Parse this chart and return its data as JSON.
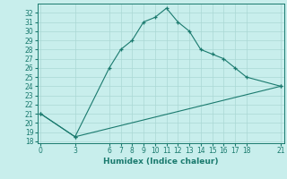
{
  "line1_x": [
    0,
    3,
    6,
    7,
    8,
    9,
    10,
    11,
    12,
    13,
    14,
    15,
    16,
    17,
    18,
    21
  ],
  "line1_y": [
    21,
    18.5,
    26,
    28,
    29,
    31,
    31.5,
    32.5,
    31,
    30,
    28,
    27.5,
    27,
    26,
    25,
    24
  ],
  "line2_x": [
    0,
    3,
    21
  ],
  "line2_y": [
    21,
    18.5,
    24
  ],
  "color": "#1a7a6e",
  "bg_color": "#c8eeec",
  "grid_color": "#aad8d5",
  "xlabel": "Humidex (Indice chaleur)",
  "xlim": [
    -0.3,
    21.3
  ],
  "ylim": [
    17.8,
    33.0
  ],
  "xticks": [
    0,
    3,
    6,
    7,
    8,
    9,
    10,
    11,
    12,
    13,
    14,
    15,
    16,
    17,
    18,
    21
  ],
  "yticks": [
    18,
    19,
    20,
    21,
    22,
    23,
    24,
    25,
    26,
    27,
    28,
    29,
    30,
    31,
    32
  ],
  "xlabel_fontsize": 6.5,
  "tick_fontsize": 5.5,
  "linewidth": 0.8,
  "marker": "+",
  "markersize": 3.5,
  "markeredgewidth": 0.9
}
